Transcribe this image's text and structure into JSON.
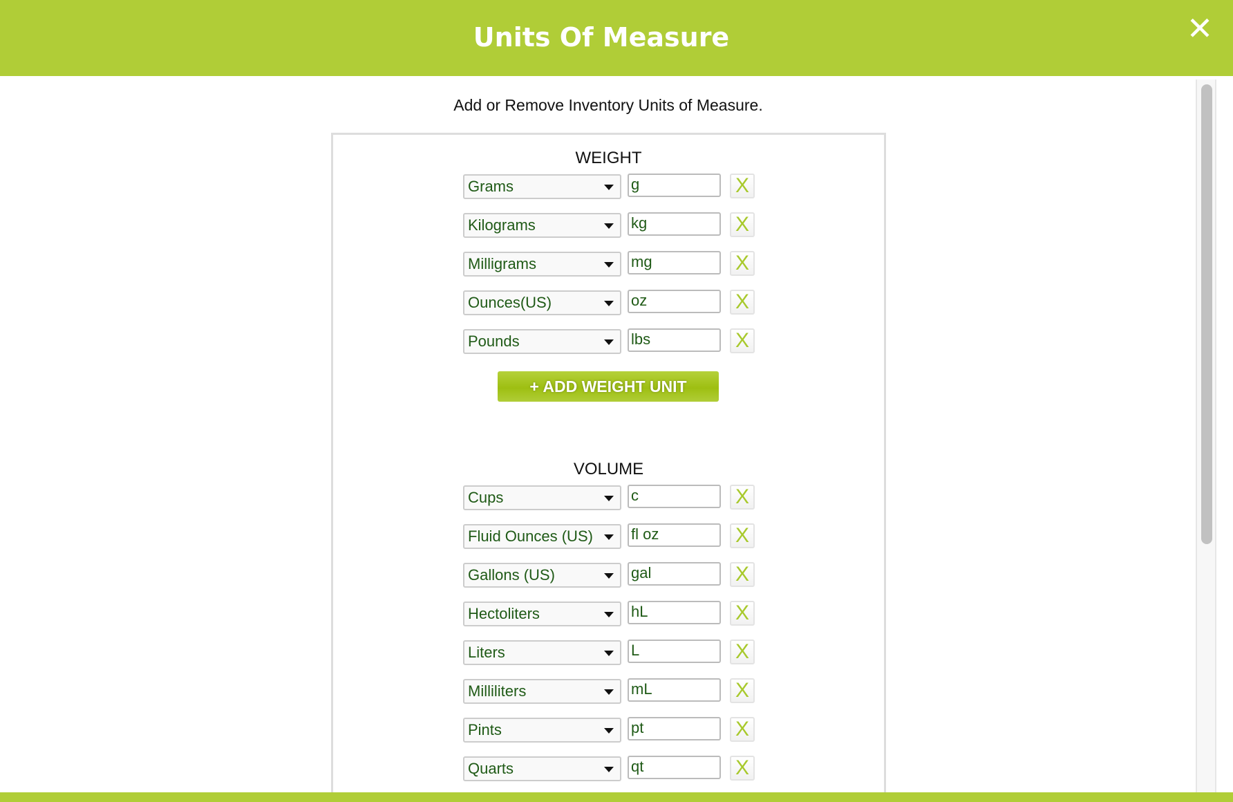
{
  "header": {
    "title": "Units Of Measure",
    "close_icon": "close-x-icon"
  },
  "subtitle": "Add or Remove Inventory Units of Measure.",
  "colors": {
    "brand": "#b0cd37",
    "text_green": "#1f5a16",
    "remove_x": "#a8c92c"
  },
  "weight": {
    "title": "WEIGHT",
    "rows": [
      {
        "unit": "Grams",
        "abbr": "g"
      },
      {
        "unit": "Kilograms",
        "abbr": "kg"
      },
      {
        "unit": "Milligrams",
        "abbr": "mg"
      },
      {
        "unit": "Ounces(US)",
        "abbr": "oz"
      },
      {
        "unit": "Pounds",
        "abbr": "lbs"
      }
    ],
    "add_label": "+ ADD WEIGHT UNIT"
  },
  "volume": {
    "title": "VOLUME",
    "rows": [
      {
        "unit": "Cups",
        "abbr": "c"
      },
      {
        "unit": "Fluid Ounces (US)",
        "abbr": "fl oz"
      },
      {
        "unit": "Gallons (US)",
        "abbr": "gal"
      },
      {
        "unit": "Hectoliters",
        "abbr": "hL"
      },
      {
        "unit": "Liters",
        "abbr": "L"
      },
      {
        "unit": "Milliliters",
        "abbr": "mL"
      },
      {
        "unit": "Pints",
        "abbr": "pt"
      },
      {
        "unit": "Quarts",
        "abbr": "qt"
      }
    ]
  },
  "remove_label": "X"
}
